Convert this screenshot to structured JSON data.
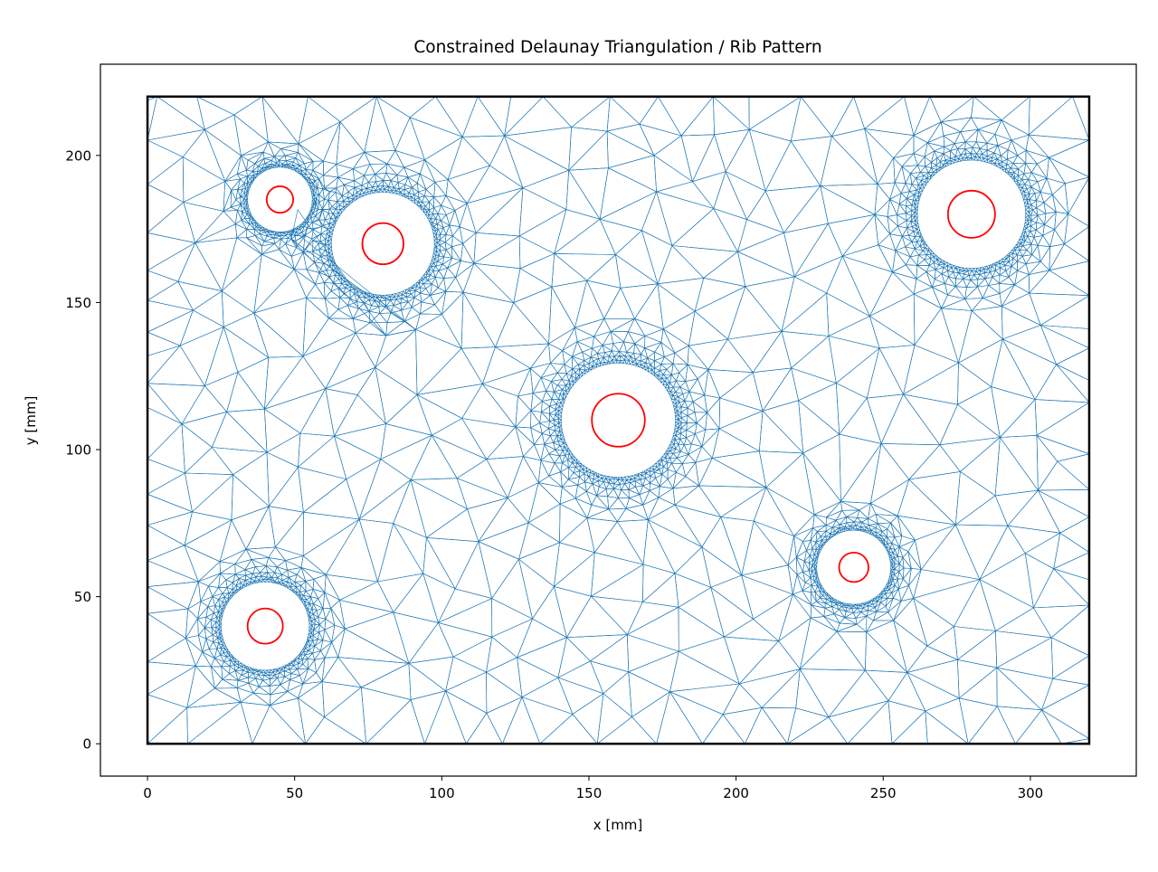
{
  "chart_data": {
    "type": "triangulation",
    "title": "Constrained Delaunay Triangulation / Rib Pattern",
    "xlabel": "x [mm]",
    "ylabel": "y [mm]",
    "xlim": [
      -16,
      336
    ],
    "ylim": [
      -11,
      231
    ],
    "xticks": [
      "0",
      "50",
      "100",
      "150",
      "200",
      "250",
      "300"
    ],
    "yticks": [
      "0",
      "50",
      "100",
      "150",
      "200"
    ],
    "grid": false,
    "domain": {
      "x": [
        0,
        320
      ],
      "y": [
        0,
        220
      ],
      "color": "#000000"
    },
    "mesh_color": "#1f77b4",
    "hole_color": "#ff0000",
    "holes": [
      {
        "cx": 45,
        "cy": 185,
        "r": 4.5,
        "clearance_r": 11
      },
      {
        "cx": 80,
        "cy": 170,
        "r": 7,
        "clearance_r": 17.5
      },
      {
        "cx": 160,
        "cy": 110,
        "r": 9,
        "clearance_r": 19.4
      },
      {
        "cx": 280,
        "cy": 180,
        "r": 8,
        "clearance_r": 18.4
      },
      {
        "cx": 40,
        "cy": 40,
        "r": 6,
        "clearance_r": 15
      },
      {
        "cx": 240,
        "cy": 60,
        "r": 5,
        "clearance_r": 12.6
      }
    ]
  }
}
